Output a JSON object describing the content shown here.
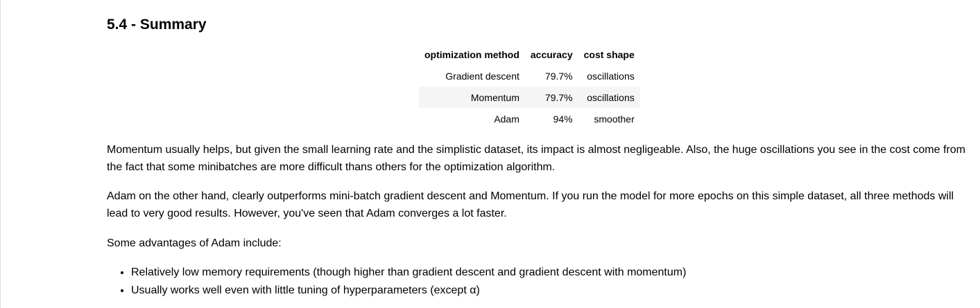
{
  "heading": "5.4 - Summary",
  "table": {
    "headers": [
      "optimization method",
      "accuracy",
      "cost shape"
    ],
    "rows": [
      [
        "Gradient descent",
        "79.7%",
        "oscillations"
      ],
      [
        "Momentum",
        "79.7%",
        "oscillations"
      ],
      [
        "Adam",
        "94%",
        "smoother"
      ]
    ]
  },
  "paragraphs": [
    "Momentum usually helps, but given the small learning rate and the simplistic dataset, its impact is almost negligeable. Also, the huge oscillations you see in the cost come from the fact that some minibatches are more difficult thans others for the optimization algorithm.",
    "Adam on the other hand, clearly outperforms mini-batch gradient descent and Momentum. If you run the model for more epochs on this simple dataset, all three methods will lead to very good results. However, you've seen that Adam converges a lot faster.",
    "Some advantages of Adam include:"
  ],
  "bullets": [
    "Relatively low memory requirements (though higher than gradient descent and gradient descent with momentum)",
    "Usually works well even with little tuning of hyperparameters (except α)"
  ]
}
